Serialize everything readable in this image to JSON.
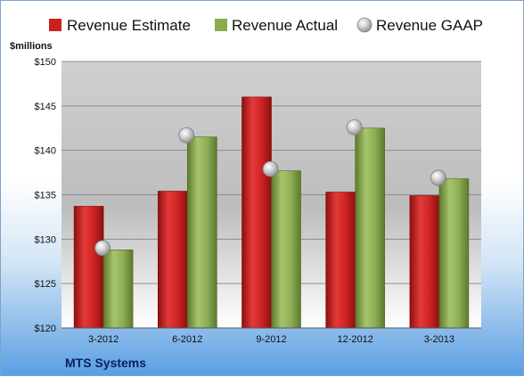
{
  "chart_data": {
    "type": "bar",
    "title": "",
    "ylabel": "$millions",
    "xlabel": "",
    "footer": "MTS Systems",
    "categories": [
      "3-2012",
      "6-2012",
      "9-2012",
      "12-2012",
      "3-2013"
    ],
    "ylim": [
      120,
      150
    ],
    "yticks": [
      120,
      125,
      130,
      135,
      140,
      145,
      150
    ],
    "ytick_labels": [
      "$120",
      "$125",
      "$130",
      "$135",
      "$140",
      "$145",
      "$150"
    ],
    "grid": true,
    "legend_position": "top",
    "series": [
      {
        "name": "Revenue Estimate",
        "kind": "bar",
        "color": "#cc1f1f",
        "values": [
          133.7,
          135.4,
          146.0,
          135.3,
          134.9
        ]
      },
      {
        "name": "Revenue Actual",
        "kind": "bar",
        "color": "#8aab4e",
        "values": [
          128.8,
          141.5,
          137.7,
          142.5,
          136.8
        ]
      },
      {
        "name": "Revenue GAAP",
        "kind": "marker",
        "color": "#b8b8b8",
        "values": [
          129.0,
          141.7,
          137.9,
          142.6,
          136.9
        ]
      }
    ]
  }
}
